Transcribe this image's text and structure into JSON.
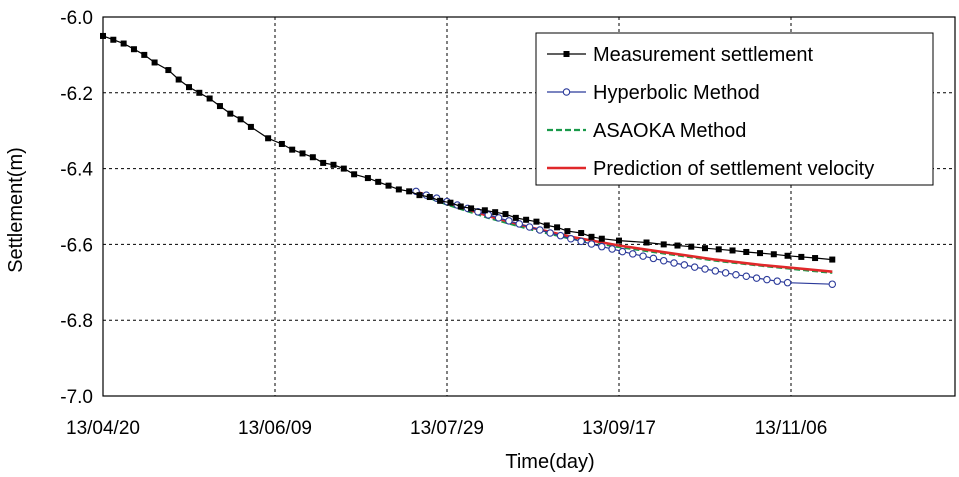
{
  "chart_data": {
    "type": "line",
    "xlabel": "Time(day)",
    "ylabel": "Settlement(m)",
    "x_tick_labels": [
      "13/04/20",
      "13/06/09",
      "13/07/29",
      "13/09/17",
      "13/11/06"
    ],
    "x_tick_dates": [
      "2013-04-20",
      "2013-06-09",
      "2013-07-29",
      "2013-09-17",
      "2013-11-06"
    ],
    "xlim": [
      "2013-04-20",
      "2013-12-26"
    ],
    "ylim": [
      -7.0,
      -6.0
    ],
    "y_ticks": [
      -7.0,
      -6.8,
      -6.6,
      -6.4,
      -6.2,
      -6.0
    ],
    "y_tick_labels": [
      "-7.0",
      "-6.8",
      "-6.6",
      "-6.4",
      "-6.2",
      "-6.0"
    ],
    "grid": true,
    "legend_position": "top-right",
    "series": [
      {
        "name": "Measurement settlement",
        "color": "#000000",
        "marker": "square-filled",
        "line": "solid",
        "points": [
          [
            "2013-04-20",
            -6.05
          ],
          [
            "2013-04-23",
            -6.06
          ],
          [
            "2013-04-26",
            -6.07
          ],
          [
            "2013-04-29",
            -6.085
          ],
          [
            "2013-05-02",
            -6.1
          ],
          [
            "2013-05-05",
            -6.12
          ],
          [
            "2013-05-09",
            -6.14
          ],
          [
            "2013-05-12",
            -6.165
          ],
          [
            "2013-05-15",
            -6.185
          ],
          [
            "2013-05-18",
            -6.2
          ],
          [
            "2013-05-21",
            -6.215
          ],
          [
            "2013-05-24",
            -6.235
          ],
          [
            "2013-05-27",
            -6.255
          ],
          [
            "2013-05-30",
            -6.27
          ],
          [
            "2013-06-02",
            -6.29
          ],
          [
            "2013-06-07",
            -6.32
          ],
          [
            "2013-06-11",
            -6.335
          ],
          [
            "2013-06-14",
            -6.35
          ],
          [
            "2013-06-17",
            -6.36
          ],
          [
            "2013-06-20",
            -6.37
          ],
          [
            "2013-06-23",
            -6.385
          ],
          [
            "2013-06-26",
            -6.39
          ],
          [
            "2013-06-29",
            -6.4
          ],
          [
            "2013-07-02",
            -6.415
          ],
          [
            "2013-07-06",
            -6.425
          ],
          [
            "2013-07-09",
            -6.435
          ],
          [
            "2013-07-12",
            -6.445
          ],
          [
            "2013-07-15",
            -6.455
          ],
          [
            "2013-07-18",
            -6.46
          ],
          [
            "2013-07-21",
            -6.47
          ],
          [
            "2013-07-24",
            -6.475
          ],
          [
            "2013-07-27",
            -6.485
          ],
          [
            "2013-07-30",
            -6.49
          ],
          [
            "2013-08-02",
            -6.5
          ],
          [
            "2013-08-05",
            -6.505
          ],
          [
            "2013-08-09",
            -6.51
          ],
          [
            "2013-08-12",
            -6.515
          ],
          [
            "2013-08-15",
            -6.52
          ],
          [
            "2013-08-18",
            -6.53
          ],
          [
            "2013-08-21",
            -6.535
          ],
          [
            "2013-08-24",
            -6.54
          ],
          [
            "2013-08-27",
            -6.55
          ],
          [
            "2013-08-30",
            -6.555
          ],
          [
            "2013-09-02",
            -6.565
          ],
          [
            "2013-09-06",
            -6.57
          ],
          [
            "2013-09-09",
            -6.58
          ],
          [
            "2013-09-12",
            -6.585
          ],
          [
            "2013-09-17",
            -6.59
          ],
          [
            "2013-09-25",
            -6.595
          ],
          [
            "2013-09-30",
            -6.6
          ],
          [
            "2013-10-04",
            -6.603
          ],
          [
            "2013-10-08",
            -6.606
          ],
          [
            "2013-10-12",
            -6.61
          ],
          [
            "2013-10-16",
            -6.613
          ],
          [
            "2013-10-20",
            -6.616
          ],
          [
            "2013-10-24",
            -6.62
          ],
          [
            "2013-10-28",
            -6.623
          ],
          [
            "2013-11-01",
            -6.626
          ],
          [
            "2013-11-05",
            -6.63
          ],
          [
            "2013-11-09",
            -6.633
          ],
          [
            "2013-11-13",
            -6.636
          ],
          [
            "2013-11-18",
            -6.64
          ]
        ]
      },
      {
        "name": "Hyperbolic Method",
        "color": "#2b3a9a",
        "marker": "circle-open",
        "line": "solid",
        "points": [
          [
            "2013-07-20",
            -6.46
          ],
          [
            "2013-07-23",
            -6.47
          ],
          [
            "2013-07-26",
            -6.478
          ],
          [
            "2013-07-29",
            -6.487
          ],
          [
            "2013-08-01",
            -6.496
          ],
          [
            "2013-08-04",
            -6.505
          ],
          [
            "2013-08-07",
            -6.514
          ],
          [
            "2013-08-10",
            -6.522
          ],
          [
            "2013-08-13",
            -6.53
          ],
          [
            "2013-08-16",
            -6.538
          ],
          [
            "2013-08-19",
            -6.546
          ],
          [
            "2013-08-22",
            -6.554
          ],
          [
            "2013-08-25",
            -6.562
          ],
          [
            "2013-08-28",
            -6.57
          ],
          [
            "2013-08-31",
            -6.577
          ],
          [
            "2013-09-03",
            -6.585
          ],
          [
            "2013-09-06",
            -6.592
          ],
          [
            "2013-09-09",
            -6.599
          ],
          [
            "2013-09-12",
            -6.606
          ],
          [
            "2013-09-15",
            -6.612
          ],
          [
            "2013-09-18",
            -6.619
          ],
          [
            "2013-09-21",
            -6.625
          ],
          [
            "2013-09-24",
            -6.631
          ],
          [
            "2013-09-27",
            -6.637
          ],
          [
            "2013-09-30",
            -6.643
          ],
          [
            "2013-10-03",
            -6.649
          ],
          [
            "2013-10-06",
            -6.654
          ],
          [
            "2013-10-09",
            -6.66
          ],
          [
            "2013-10-12",
            -6.665
          ],
          [
            "2013-10-15",
            -6.67
          ],
          [
            "2013-10-18",
            -6.675
          ],
          [
            "2013-10-21",
            -6.68
          ],
          [
            "2013-10-24",
            -6.684
          ],
          [
            "2013-10-27",
            -6.689
          ],
          [
            "2013-10-30",
            -6.693
          ],
          [
            "2013-11-02",
            -6.697
          ],
          [
            "2013-11-05",
            -6.701
          ],
          [
            "2013-11-18",
            -6.705
          ]
        ]
      },
      {
        "name": "ASAOKA Method",
        "color": "#1a9a4a",
        "marker": "none",
        "line": "dashed",
        "points": [
          [
            "2013-07-20",
            -6.465
          ],
          [
            "2013-07-29",
            -6.495
          ],
          [
            "2013-08-10",
            -6.53
          ],
          [
            "2013-08-22",
            -6.56
          ],
          [
            "2013-09-03",
            -6.585
          ],
          [
            "2013-09-17",
            -6.607
          ],
          [
            "2013-10-01",
            -6.625
          ],
          [
            "2013-10-15",
            -6.643
          ],
          [
            "2013-10-29",
            -6.657
          ],
          [
            "2013-11-10",
            -6.668
          ],
          [
            "2013-11-18",
            -6.675
          ]
        ]
      },
      {
        "name": "Prediction of settlement velocity",
        "color": "#e0282a",
        "marker": "none",
        "line": "solid",
        "points": [
          [
            "2013-07-20",
            -6.46
          ],
          [
            "2013-07-29",
            -6.49
          ],
          [
            "2013-08-10",
            -6.525
          ],
          [
            "2013-08-22",
            -6.555
          ],
          [
            "2013-09-03",
            -6.58
          ],
          [
            "2013-09-17",
            -6.603
          ],
          [
            "2013-10-01",
            -6.622
          ],
          [
            "2013-10-15",
            -6.64
          ],
          [
            "2013-10-29",
            -6.655
          ],
          [
            "2013-11-10",
            -6.665
          ],
          [
            "2013-11-18",
            -6.672
          ]
        ]
      }
    ]
  }
}
